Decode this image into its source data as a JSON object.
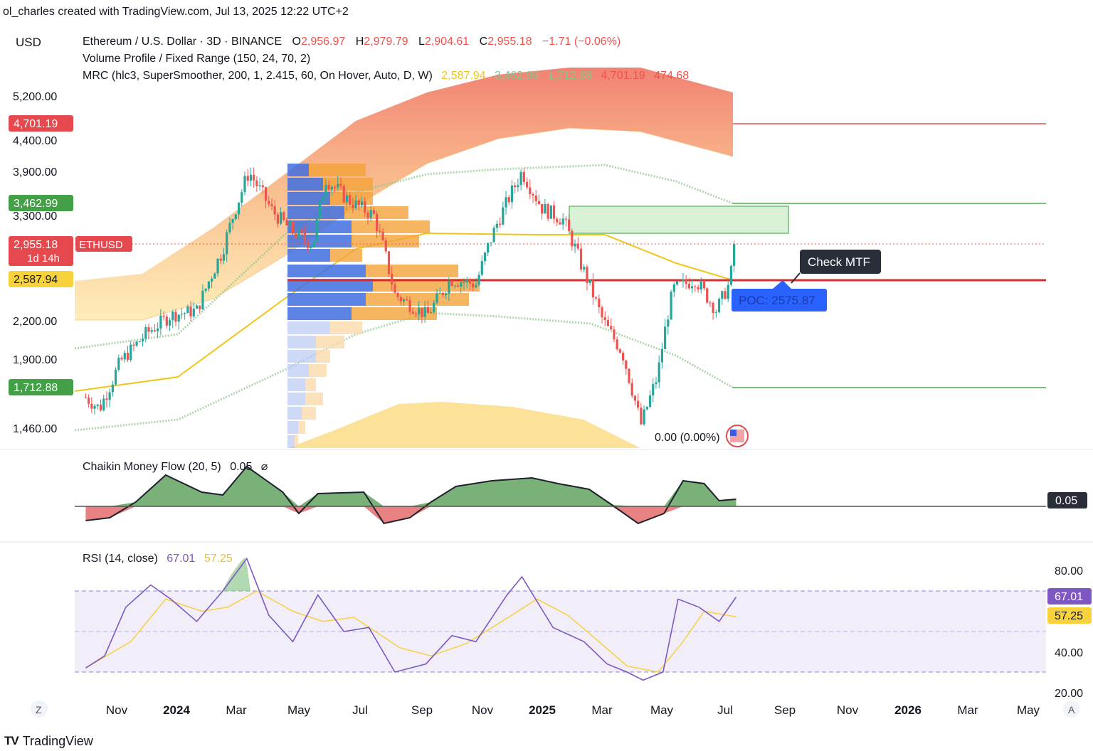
{
  "credit": "ol_charles created with TradingView.com, Jul 13, 2025 12:22 UTC+2",
  "currency": "USD",
  "legend": {
    "symbol": "Ethereum / U.S. Dollar · 3D · BINANCE",
    "open_label": "O",
    "open": "2,956.97",
    "high_label": "H",
    "high": "2,979.79",
    "low_label": "L",
    "low": "2,904.61",
    "close_label": "C",
    "close": "2,955.18",
    "change": "−1.71 (−0.06%)",
    "volume_profile": "Volume Profile / Fixed Range (150, 24, 70, 2)",
    "mrc": "MRC (hlc3, SuperSmoother, 200, 1, 2.415, 60, On Hover, Auto, D, W)",
    "mrc_values": [
      "2,587.94",
      "3,462.99",
      "1,712.88",
      "4,701.19",
      "474.68"
    ]
  },
  "price_axis": {
    "ticks": [
      "5,200.00",
      "4,400.00",
      "3,900.00",
      "3,300.00",
      "2,200.00",
      "1,900.00",
      "1,460.00"
    ],
    "badges": {
      "upper": "4,701.19",
      "mid_upper": "3,462.99",
      "price": "2,955.18",
      "countdown": "1d 14h",
      "symbol": "ETHUSD",
      "mean": "2,587.94",
      "lower": "1,712.88"
    }
  },
  "annotations": {
    "check_mtf": "Check MTF",
    "poc": "POC: 2575.87",
    "zero_change": "0.00 (0.00%)"
  },
  "cmf": {
    "title": "Chaikin Money Flow (20, 5)",
    "value": "0.05",
    "last_badge": "0.05"
  },
  "rsi": {
    "title": "RSI (14, close)",
    "value": "67.01",
    "ma_value": "57.25",
    "ticks": [
      "80.00",
      "40.00",
      "20.00"
    ]
  },
  "time_axis": [
    "Nov",
    "2024",
    "Mar",
    "May",
    "Jul",
    "Sep",
    "Nov",
    "2025",
    "Mar",
    "May",
    "Jul",
    "Sep",
    "Nov",
    "2026",
    "Mar",
    "May"
  ],
  "time_axis_bold": [
    "2024",
    "2025",
    "2026"
  ],
  "axis_buttons": {
    "left": "Z",
    "right": "A"
  },
  "brand": {
    "logo": "TV",
    "name": "TradingView"
  },
  "colors": {
    "bull": "#26a69a",
    "bear": "#ef5350",
    "poc_line": "#d32f2f",
    "mean_line": "#f2c41a",
    "band_green": "#8bc48a",
    "vp_blue": "#3f6fe0",
    "vp_orange": "#f4a338",
    "rsi_line": "#7e57c2",
    "rsi_ma": "#f5d142",
    "cmf_pos": "#6aa86a",
    "cmf_neg": "#e57373"
  },
  "chart_data": [
    {
      "type": "candlestick",
      "title": "Ethereum / U.S. Dollar · 3D · BINANCE",
      "ylabel": "USD",
      "ylim": [
        1350,
        5600
      ],
      "x_range": [
        "2023-09-27",
        "2026-06-01"
      ],
      "price_path": [
        [
          "2023-10-01",
          1650
        ],
        [
          "2023-10-15",
          1580
        ],
        [
          "2023-11-05",
          1880
        ],
        [
          "2023-12-01",
          2100
        ],
        [
          "2023-12-25",
          2250
        ],
        [
          "2024-01-20",
          2300
        ],
        [
          "2024-02-15",
          2900
        ],
        [
          "2024-03-12",
          3900
        ],
        [
          "2024-04-05",
          3350
        ],
        [
          "2024-04-25",
          3100
        ],
        [
          "2024-05-15",
          2950
        ],
        [
          "2024-05-28",
          3800
        ],
        [
          "2024-06-20",
          3500
        ],
        [
          "2024-07-15",
          3300
        ],
        [
          "2024-08-05",
          2450
        ],
        [
          "2024-09-06",
          2250
        ],
        [
          "2024-09-30",
          2600
        ],
        [
          "2024-10-25",
          2550
        ],
        [
          "2024-11-15",
          3200
        ],
        [
          "2024-12-10",
          3900
        ],
        [
          "2024-12-30",
          3400
        ],
        [
          "2025-01-20",
          3250
        ],
        [
          "2025-02-05",
          2800
        ],
        [
          "2025-03-01",
          2200
        ],
        [
          "2025-03-20",
          1950
        ],
        [
          "2025-04-08",
          1480
        ],
        [
          "2025-04-25",
          1800
        ],
        [
          "2025-05-10",
          2500
        ],
        [
          "2025-06-01",
          2600
        ],
        [
          "2025-06-22",
          2300
        ],
        [
          "2025-07-05",
          2550
        ],
        [
          "2025-07-12",
          2955.18
        ]
      ],
      "horizontal_levels": [
        {
          "name": "MRC upper",
          "value": 4701.19
        },
        {
          "name": "MRC inner upper",
          "value": 3462.99
        },
        {
          "name": "Last price",
          "value": 2955.18
        },
        {
          "name": "MRC mean",
          "value": 2587.94
        },
        {
          "name": "POC",
          "value": 2575.87
        },
        {
          "name": "MRC lower",
          "value": 1712.88
        }
      ],
      "resistance_zone": {
        "from": "2025-02-02",
        "to": "2025-09-01",
        "low": 3020,
        "high": 3480
      }
    },
    {
      "type": "area",
      "title": "Chaikin Money Flow (20, 5)",
      "last": 0.05,
      "points": [
        [
          "2023-10-01",
          -0.1
        ],
        [
          "2023-10-25",
          -0.08
        ],
        [
          "2023-11-20",
          0.03
        ],
        [
          "2023-12-20",
          0.22
        ],
        [
          "2024-01-25",
          0.1
        ],
        [
          "2024-02-15",
          0.08
        ],
        [
          "2024-03-10",
          0.28
        ],
        [
          "2024-04-15",
          0.1
        ],
        [
          "2024-05-01",
          -0.05
        ],
        [
          "2024-05-20",
          0.09
        ],
        [
          "2024-07-05",
          0.1
        ],
        [
          "2024-07-25",
          -0.12
        ],
        [
          "2024-08-20",
          -0.08
        ],
        [
          "2024-09-10",
          0.03
        ],
        [
          "2024-10-05",
          0.14
        ],
        [
          "2024-11-10",
          0.18
        ],
        [
          "2024-12-20",
          0.2
        ],
        [
          "2025-01-15",
          0.16
        ],
        [
          "2025-02-15",
          0.12
        ],
        [
          "2025-03-10",
          0.01
        ],
        [
          "2025-04-05",
          -0.12
        ],
        [
          "2025-05-01",
          -0.05
        ],
        [
          "2025-05-20",
          0.18
        ],
        [
          "2025-06-10",
          0.16
        ],
        [
          "2025-06-25",
          0.04
        ],
        [
          "2025-07-12",
          0.05
        ]
      ]
    },
    {
      "type": "line",
      "title": "RSI (14, close)",
      "ylim": [
        20,
        90
      ],
      "levels": [
        70,
        50,
        30
      ],
      "series": [
        {
          "values": [
            [
              "2023-10-01",
              32
            ],
            [
              "2023-10-20",
              38
            ],
            [
              "2023-11-10",
              62
            ],
            [
              "2023-12-05",
              73
            ],
            [
              "2023-12-25",
              66
            ],
            [
              "2024-01-20",
              55
            ],
            [
              "2024-02-15",
              70
            ],
            [
              "2024-03-10",
              86
            ],
            [
              "2024-04-01",
              58
            ],
            [
              "2024-04-25",
              45
            ],
            [
              "2024-05-20",
              68
            ],
            [
              "2024-06-15",
              50
            ],
            [
              "2024-07-10",
              52
            ],
            [
              "2024-08-05",
              30
            ],
            [
              "2024-09-05",
              34
            ],
            [
              "2024-10-01",
              48
            ],
            [
              "2024-10-25",
              45
            ],
            [
              "2024-11-25",
              68
            ],
            [
              "2024-12-10",
              77
            ],
            [
              "2025-01-10",
              52
            ],
            [
              "2025-02-10",
              45
            ],
            [
              "2025-03-05",
              34
            ],
            [
              "2025-03-25",
              30
            ],
            [
              "2025-04-10",
              26
            ],
            [
              "2025-04-30",
              30
            ],
            [
              "2025-05-15",
              66
            ],
            [
              "2025-06-05",
              62
            ],
            [
              "2025-06-25",
              55
            ],
            [
              "2025-07-12",
              67.01
            ]
          ]
        },
        {
          "values": [
            [
              "2023-10-01",
              32
            ],
            [
              "2023-11-15",
              45
            ],
            [
              "2023-12-20",
              66
            ],
            [
              "2024-01-25",
              60
            ],
            [
              "2024-02-20",
              62
            ],
            [
              "2024-03-20",
              70
            ],
            [
              "2024-04-25",
              60
            ],
            [
              "2024-05-25",
              55
            ],
            [
              "2024-06-25",
              57
            ],
            [
              "2024-08-10",
              42
            ],
            [
              "2024-09-10",
              38
            ],
            [
              "2024-10-15",
              44
            ],
            [
              "2024-11-20",
              55
            ],
            [
              "2024-12-25",
              66
            ],
            [
              "2025-01-25",
              58
            ],
            [
              "2025-02-25",
              45
            ],
            [
              "2025-03-25",
              33
            ],
            [
              "2025-04-25",
              30
            ],
            [
              "2025-05-20",
              45
            ],
            [
              "2025-06-10",
              60
            ],
            [
              "2025-07-12",
              57.25
            ]
          ]
        }
      ]
    }
  ]
}
